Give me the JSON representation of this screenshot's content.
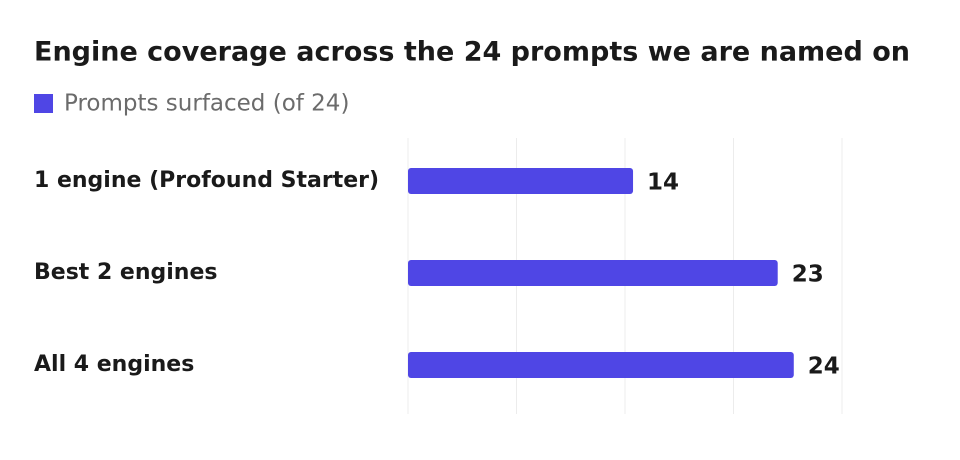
{
  "chart_data": {
    "type": "bar",
    "orientation": "horizontal",
    "title": "Engine coverage across the 24 prompts we are named on",
    "categories": [
      "1 engine (Profound Starter)",
      "Best 2 engines",
      "All 4 engines"
    ],
    "series": [
      {
        "name": "Prompts surfaced (of 24)",
        "color": "#4f46e5",
        "values": [
          14,
          23,
          24
        ]
      }
    ],
    "xlim": [
      0,
      27
    ],
    "xticks": [
      0,
      6.75,
      13.5,
      20.25,
      27
    ],
    "grid": true,
    "legend": "top-left"
  }
}
